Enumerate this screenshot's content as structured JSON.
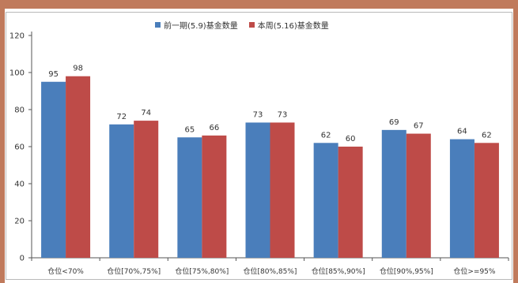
{
  "title": "",
  "chart_data": {
    "type": "bar",
    "title": "",
    "xlabel": "",
    "ylabel": "",
    "ylim": [
      0,
      120
    ],
    "yticks": [
      0,
      20,
      40,
      60,
      80,
      100,
      120
    ],
    "categories": [
      "仓位<70%",
      "仓位[70%,75%]",
      "仓位[75%,80%]",
      "仓位[80%,85%]",
      "仓位[85%,90%]",
      "仓位[90%,95%]",
      "仓位>=95%"
    ],
    "series": [
      {
        "name": "前一期(5.9)基金数量",
        "color": "#4a7ebb",
        "values": [
          95,
          72,
          65,
          73,
          62,
          69,
          64
        ]
      },
      {
        "name": "本周(5.16)基金数量",
        "color": "#be4b48",
        "values": [
          98,
          74,
          66,
          73,
          60,
          67,
          62
        ]
      }
    ],
    "legend": "top-center",
    "grid": false
  }
}
